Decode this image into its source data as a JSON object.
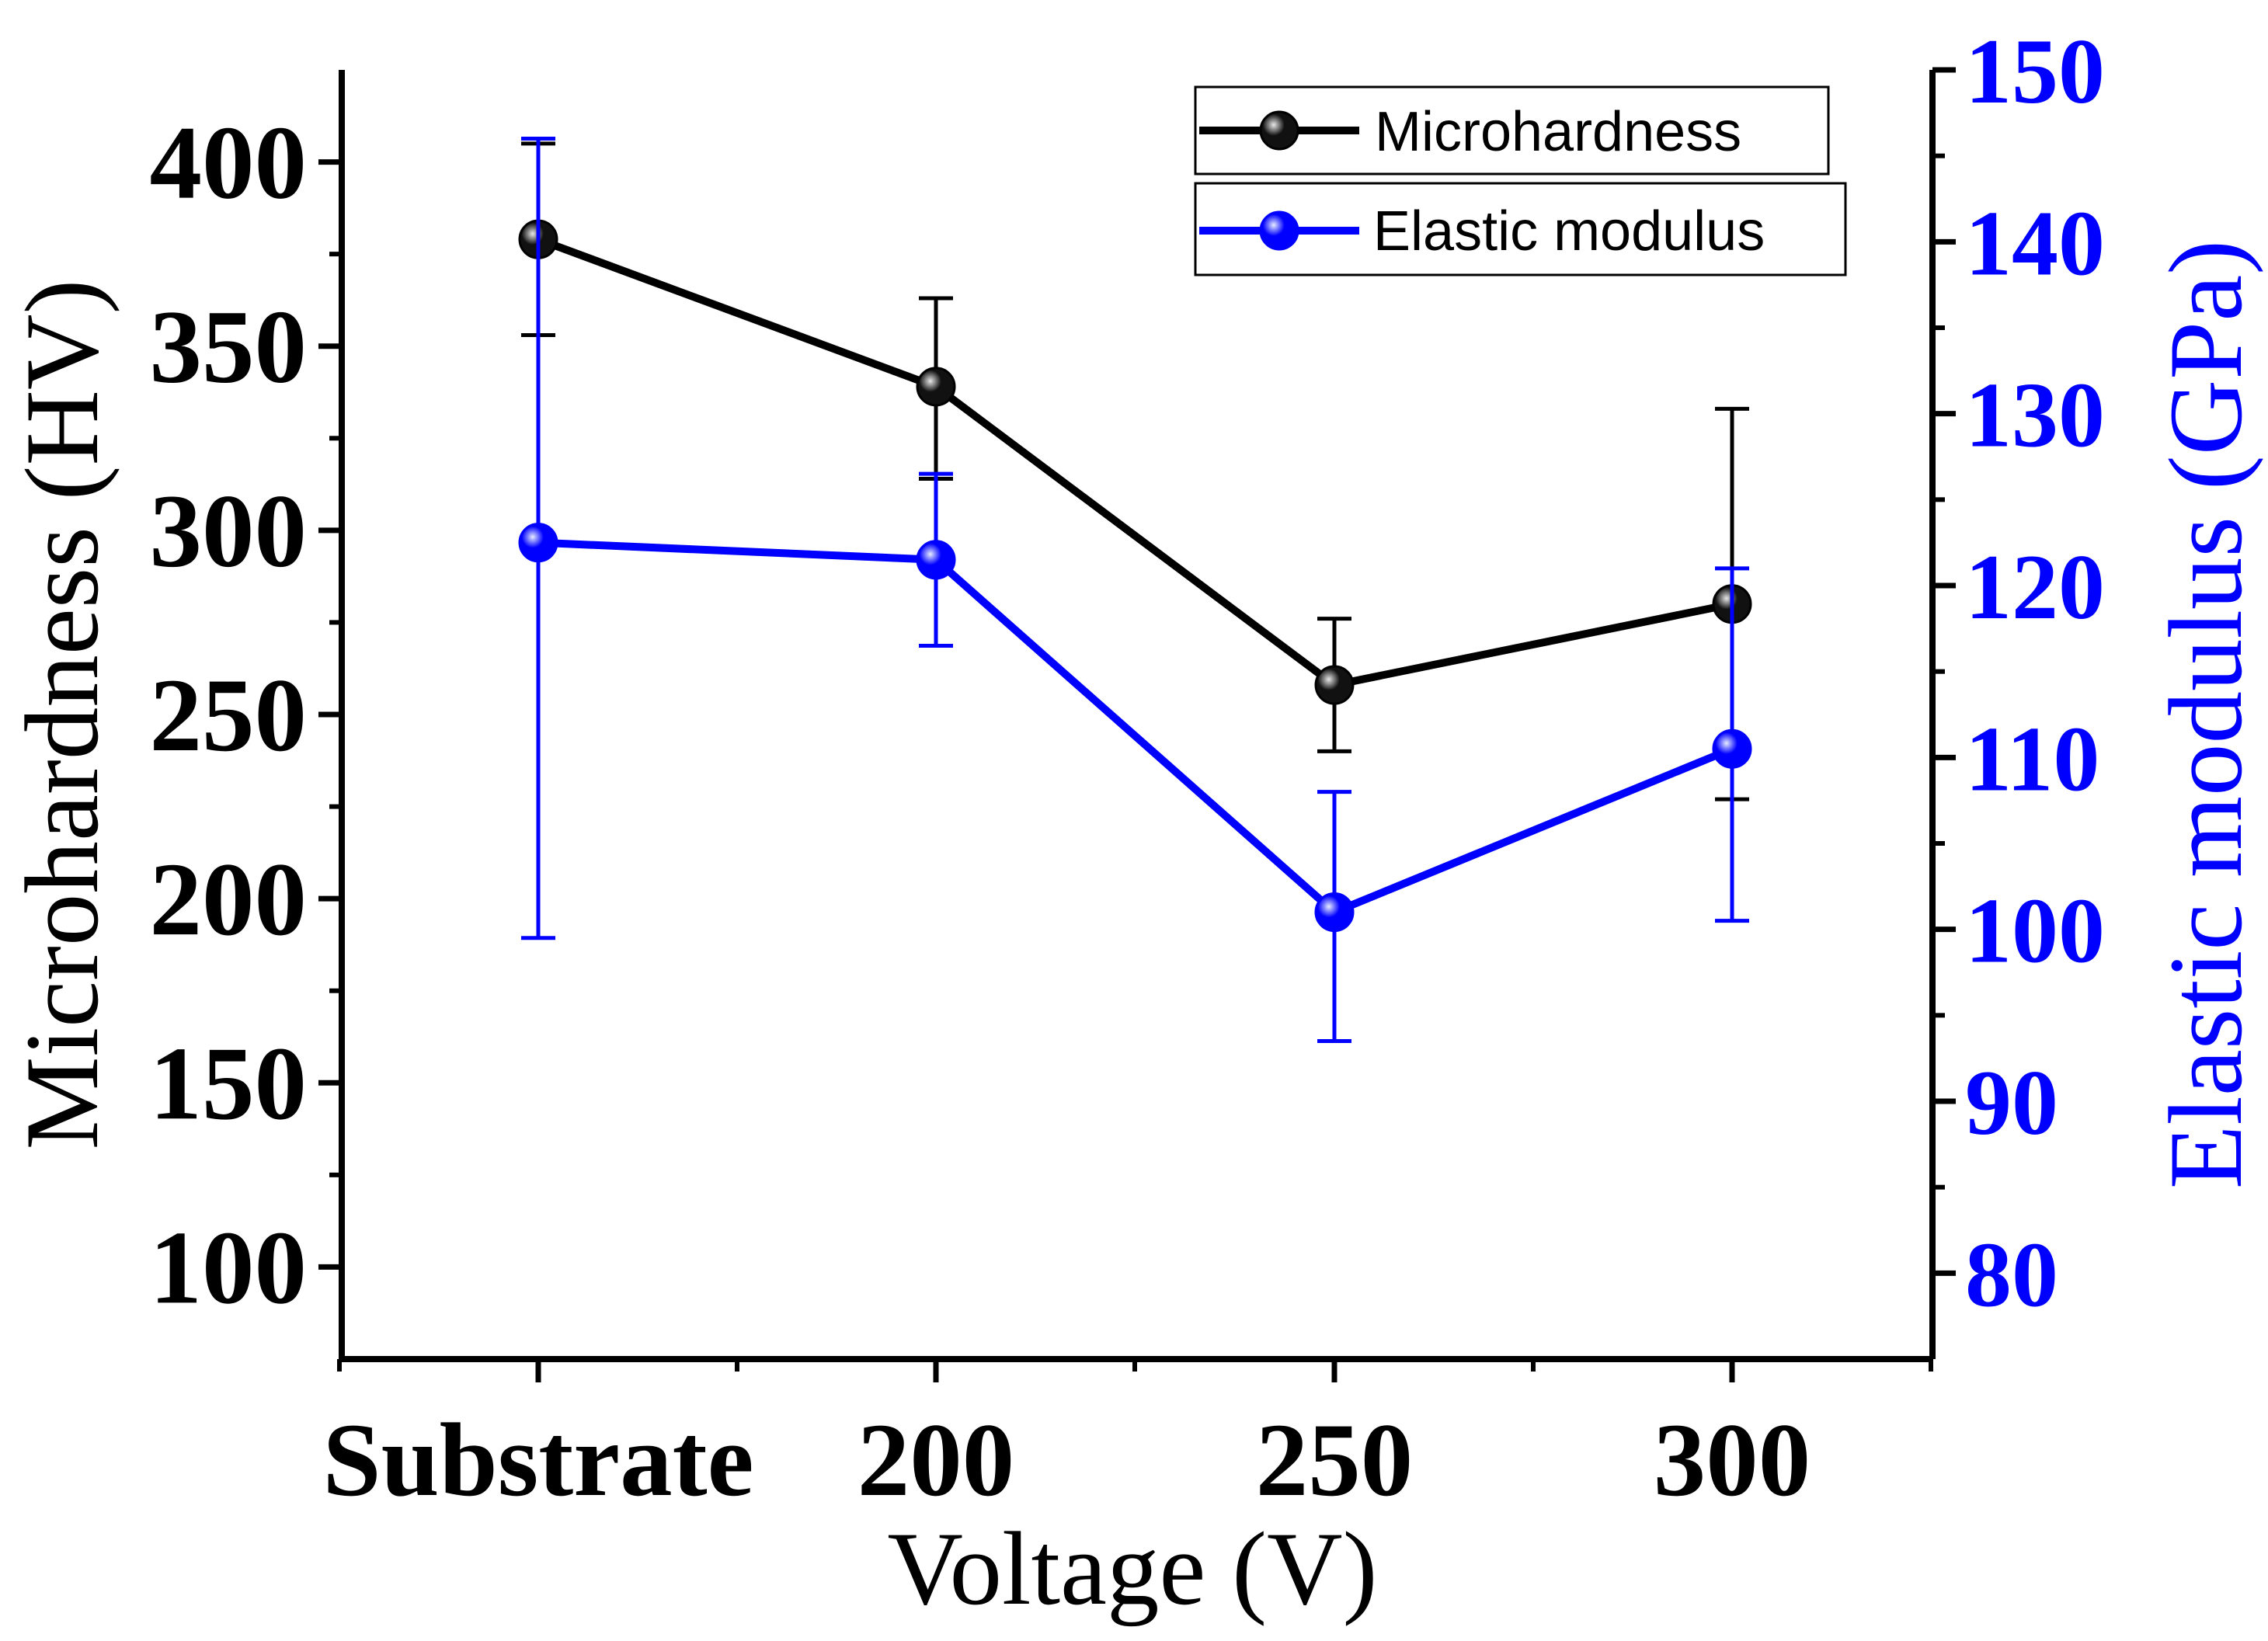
{
  "chart_data": {
    "type": "line",
    "title": "",
    "xlabel": "Voltage (V)",
    "ylabel": "Microhardness (HV)",
    "y2label": "Elastic modulus (GPa)",
    "categories": [
      "Substrate",
      "200",
      "250",
      "300"
    ],
    "ylim": [
      75,
      425
    ],
    "y2lim": [
      75,
      150
    ],
    "yticks": [
      100,
      150,
      200,
      250,
      300,
      350,
      400
    ],
    "y2ticks": [
      80,
      90,
      100,
      110,
      120,
      130,
      140,
      150
    ],
    "grid": false,
    "legend_position": "top-right",
    "series": [
      {
        "name": "Microhardness",
        "axis": "left",
        "color": "#000000",
        "values": [
          379,
          339,
          258,
          280
        ],
        "error_low": [
          353,
          314,
          240,
          227
        ],
        "error_high": [
          405,
          363,
          276,
          333
        ]
      },
      {
        "name": "Elastic modulus",
        "axis": "right",
        "color": "#0000ff",
        "values": [
          122.5,
          121.5,
          101,
          110.5
        ],
        "error_low": [
          99.5,
          116.5,
          93.5,
          100.5
        ],
        "error_high": [
          146,
          126.5,
          108,
          121
        ]
      }
    ]
  }
}
